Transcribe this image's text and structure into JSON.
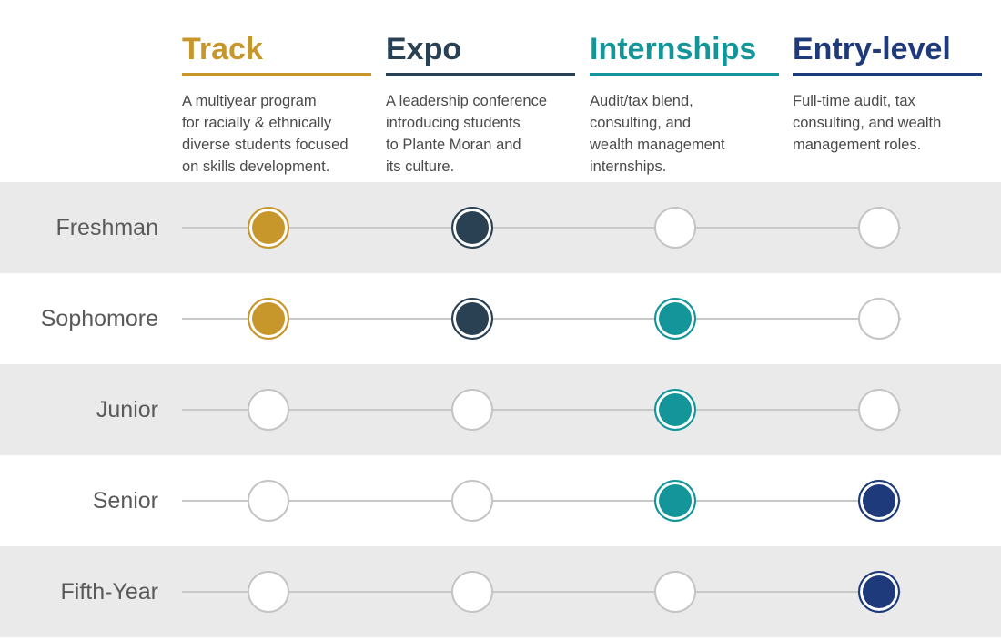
{
  "colors": {
    "track": "#C8972B",
    "expo": "#2A4154",
    "internships": "#13959A",
    "entry_level": "#1E3A7A",
    "empty": "#ffffff"
  },
  "columns": [
    {
      "key": "track",
      "title": "Track",
      "description": "A multiyear program\nfor racially & ethnically\ndiverse students focused\non skills development."
    },
    {
      "key": "expo",
      "title": "Expo",
      "description": "A leadership conference\nintroducing students\nto Plante Moran and\nits culture."
    },
    {
      "key": "internships",
      "title": "Internships",
      "description": "Audit/tax blend,\nconsulting, and\nwealth management\ninternships."
    },
    {
      "key": "entry_level",
      "title": "Entry-level",
      "description": "Full-time audit, tax\nconsulting, and wealth\nmanagement roles."
    }
  ],
  "rows": [
    {
      "label": "Freshman",
      "eligible": [
        true,
        true,
        false,
        false
      ]
    },
    {
      "label": "Sophomore",
      "eligible": [
        true,
        true,
        true,
        false
      ]
    },
    {
      "label": "Junior",
      "eligible": [
        false,
        false,
        true,
        false
      ]
    },
    {
      "label": "Senior",
      "eligible": [
        false,
        false,
        true,
        true
      ]
    },
    {
      "label": "Fifth-Year",
      "eligible": [
        false,
        false,
        false,
        true
      ]
    }
  ]
}
